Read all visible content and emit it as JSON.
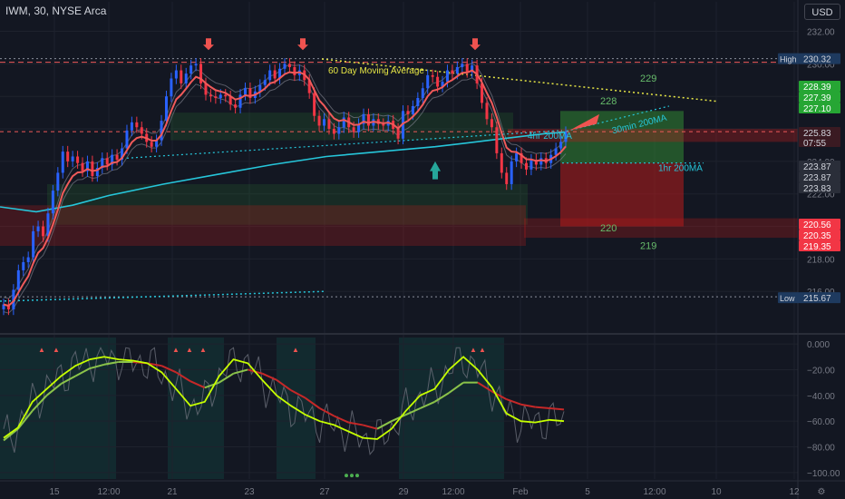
{
  "header": {
    "symbol": "IWM, 30, NYSE Arca",
    "currency": "USD"
  },
  "colors": {
    "background": "#131722",
    "grid": "#1e222d",
    "up_candle": "#2962ff",
    "down_candle": "#f23645",
    "ema_red": "#f05a5a",
    "ma_200_cyan": "#26c6da",
    "trend_yellow": "#e6e645",
    "osc_green": "#8bc34a",
    "osc_red": "#c62828",
    "osc_bright": "#c6ff00",
    "profit_zone": "#2e7d32",
    "loss_zone": "#b71c1c"
  },
  "chart_data": [
    {
      "type": "candlestick",
      "title": "IWM, 30, NYSE Arca",
      "y_axis": {
        "ticks": [
          "232.00",
          "230.00",
          "224.00",
          "222.00",
          "218.00",
          "216.00"
        ],
        "ylim": [
          213.5,
          232.7
        ]
      },
      "x_axis": {
        "ticks": [
          "15",
          "12:00",
          "21",
          "23",
          "27",
          "29",
          "12:00",
          "Feb",
          "5",
          "12:00",
          "10",
          "12"
        ]
      },
      "price_labels": [
        {
          "label": "High",
          "value": "230.32"
        },
        {
          "value": "228.39"
        },
        {
          "value": "227.39"
        },
        {
          "value": "227.10"
        },
        {
          "value": "225.83",
          "sub": "07:55"
        },
        {
          "value": "223.87"
        },
        {
          "value": "223.87"
        },
        {
          "value": "223.83"
        },
        {
          "value": "220.56"
        },
        {
          "value": "220.35"
        },
        {
          "value": "219.35"
        },
        {
          "label": "Low",
          "value": "215.67"
        }
      ],
      "annotations": [
        "60 Day Moving Average",
        "30min 200MA",
        "4hr 200MA",
        "1hr 200MA",
        "229",
        "228",
        "220",
        "219"
      ],
      "closes": [
        215.2,
        214.9,
        216.1,
        217.3,
        217.8,
        218.1,
        219.7,
        220.0,
        219.4,
        220.8,
        222.2,
        223.3,
        224.6,
        224.0,
        224.3,
        223.9,
        223.4,
        224.0,
        223.1,
        223.6,
        224.2,
        223.8,
        224.4,
        224.1,
        224.8,
        225.9,
        226.4,
        226.1,
        225.7,
        225.2,
        224.9,
        225.3,
        226.5,
        228.0,
        229.1,
        229.6,
        228.8,
        229.4,
        229.9,
        230.0,
        228.8,
        228.1,
        228.0,
        227.9,
        228.1,
        228.0,
        227.5,
        227.3,
        228.1,
        228.5,
        227.9,
        228.3,
        228.7,
        229.0,
        229.6,
        229.1,
        229.7,
        230.0,
        229.8,
        229.3,
        229.6,
        229.0,
        228.2,
        226.8,
        226.2,
        226.6,
        226.0,
        225.7,
        226.1,
        226.7,
        226.1,
        225.8,
        226.3,
        226.9,
        226.2,
        226.6,
        226.3,
        226.2,
        226.5,
        226.0,
        225.4,
        227.1,
        226.9,
        227.4,
        227.9,
        228.5,
        229.3,
        229.2,
        228.6,
        228.9,
        229.6,
        229.4,
        229.8,
        230.0,
        229.5,
        229.9,
        228.8,
        227.6,
        226.6,
        226.1,
        224.5,
        223.3,
        222.6,
        224.0,
        224.5,
        223.9,
        223.5,
        224.1,
        223.8,
        224.2,
        223.9,
        224.4,
        224.8,
        225.2,
        225.8
      ]
    },
    {
      "type": "line",
      "title": "",
      "y_axis": {
        "ticks": [
          "0.000",
          "−20.00",
          "−40.00",
          "−60.00",
          "−80.00",
          "−100.00"
        ],
        "ylim": [
          -105,
          5
        ]
      },
      "series": [
        {
          "values": [
            -73,
            -65,
            -45,
            -35,
            -25,
            -17,
            -12,
            -10,
            -12,
            -13,
            -15,
            -22,
            -35,
            -48,
            -45,
            -25,
            -12,
            -15,
            -28,
            -40,
            -48,
            -55,
            -60,
            -63,
            -68,
            -73,
            -74,
            -66,
            -52,
            -40,
            -35,
            -20,
            -10,
            -20,
            -34,
            -54,
            -60,
            -61,
            -59,
            -60
          ]
        },
        {
          "values": [
            -75,
            -66,
            -52,
            -40,
            -31,
            -25,
            -19,
            -16,
            -14,
            -14,
            -15,
            -17,
            -22,
            -29,
            -34,
            -30,
            -23,
            -20,
            -23,
            -28,
            -36,
            -42,
            -50,
            -56,
            -61,
            -63,
            -66,
            -60,
            -55,
            -50,
            -45,
            -38,
            -30,
            -30,
            -37,
            -43,
            -47,
            -49,
            -50,
            -51
          ]
        }
      ]
    }
  ]
}
